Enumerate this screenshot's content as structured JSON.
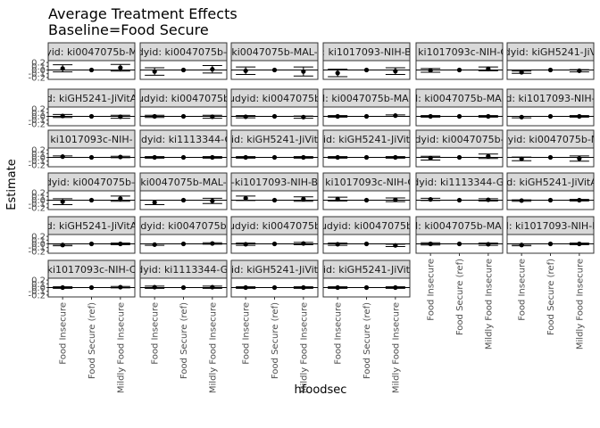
{
  "chart_data": {
    "type": "scatter",
    "title": "Average Treatment Effects",
    "subtitle": "Baseline=Food Secure",
    "xlabel": "hfoodsec",
    "ylabel": "Estimate",
    "categories": [
      "Food Insecure",
      "Food Secure (ref)",
      "Mildly Food Insecure"
    ],
    "yticks": [
      "0.2",
      "0.1",
      "0.0",
      "-0.1",
      "-0.2"
    ],
    "ylim": [
      -0.25,
      0.25
    ],
    "grid": false,
    "facet_rows": 6,
    "facet_cols": 6,
    "panels": [
      {
        "label": "yid: ki0047075b-M",
        "estimate": [
          0.04,
          0.0,
          0.06
        ],
        "lower": [
          -0.05,
          0.0,
          -0.03
        ],
        "upper": [
          0.14,
          0.0,
          0.15
        ]
      },
      {
        "label": "dyid: ki0047075b-I",
        "estimate": [
          -0.04,
          0.0,
          0.02
        ],
        "lower": [
          -0.14,
          0.0,
          -0.08
        ],
        "upper": [
          0.06,
          0.0,
          0.12
        ]
      },
      {
        "label": "ki0047075b-MAL-",
        "estimate": [
          -0.02,
          0.0,
          -0.04
        ],
        "lower": [
          -0.12,
          0.0,
          -0.16
        ],
        "upper": [
          0.08,
          0.0,
          0.08
        ]
      },
      {
        "label": ": ki1017093-NIH-B",
        "estimate": [
          -0.08,
          0.0,
          -0.03
        ],
        "lower": [
          -0.18,
          0.0,
          -0.12
        ],
        "upper": [
          0.02,
          0.0,
          0.06
        ]
      },
      {
        "label": ": ki1017093c-NIH-C",
        "estimate": [
          -0.01,
          0.0,
          0.03
        ],
        "lower": [
          -0.06,
          0.0,
          -0.02
        ],
        "upper": [
          0.04,
          0.0,
          0.08
        ]
      },
      {
        "label": "udyid: kiGH5241-JiVit",
        "estimate": [
          -0.06,
          0.0,
          -0.02
        ],
        "lower": [
          -0.09,
          0.0,
          -0.05
        ],
        "upper": [
          -0.03,
          0.0,
          0.01
        ]
      },
      {
        "label": "d: kiGH5241-JiVitA",
        "estimate": [
          0.01,
          0.0,
          -0.01
        ],
        "lower": [
          -0.03,
          0.0,
          -0.05
        ],
        "upper": [
          0.05,
          0.0,
          0.03
        ]
      },
      {
        "label": "udyid: ki0047075b",
        "estimate": [
          0.0,
          0.0,
          -0.01
        ],
        "lower": [
          -0.03,
          0.0,
          -0.05
        ],
        "upper": [
          0.03,
          0.0,
          0.03
        ]
      },
      {
        "label": "udyid: ki0047075b",
        "estimate": [
          -0.01,
          0.0,
          -0.02
        ],
        "lower": [
          -0.04,
          0.0,
          -0.05
        ],
        "upper": [
          0.02,
          0.0,
          0.01
        ]
      },
      {
        "label": "d: ki0047075b-MAL",
        "estimate": [
          0.0,
          0.0,
          0.02
        ],
        "lower": [
          -0.02,
          0.0,
          0.0
        ],
        "upper": [
          0.02,
          0.0,
          0.04
        ]
      },
      {
        "label": "d: ki0047075b-MAL",
        "estimate": [
          0.0,
          0.0,
          0.0
        ],
        "lower": [
          -0.02,
          0.0,
          -0.02
        ],
        "upper": [
          0.02,
          0.0,
          0.02
        ]
      },
      {
        "label": "d: ki1017093-NIH-",
        "estimate": [
          -0.02,
          0.0,
          0.0
        ],
        "lower": [
          -0.04,
          0.0,
          -0.02
        ],
        "upper": [
          0.0,
          0.0,
          0.02
        ]
      },
      {
        "label": "ki1017093c-NIH-",
        "estimate": [
          0.02,
          0.0,
          0.01
        ],
        "lower": [
          0.0,
          0.0,
          -0.01
        ],
        "upper": [
          0.04,
          0.0,
          0.03
        ]
      },
      {
        "label": "udyid: ki1113344-G",
        "estimate": [
          0.0,
          0.0,
          0.0
        ],
        "lower": [
          -0.02,
          0.0,
          -0.02
        ],
        "upper": [
          0.02,
          0.0,
          0.02
        ]
      },
      {
        "label": "id: kiGH5241-JiVit",
        "estimate": [
          0.0,
          0.0,
          0.0
        ],
        "lower": [
          -0.02,
          0.0,
          -0.02
        ],
        "upper": [
          0.02,
          0.0,
          0.02
        ]
      },
      {
        "label": "id: kiGH5241-JiVit",
        "estimate": [
          0.0,
          0.0,
          0.0
        ],
        "lower": [
          -0.02,
          0.0,
          -0.02
        ],
        "upper": [
          0.02,
          0.0,
          0.02
        ]
      },
      {
        "label": "dyid: ki0047075b-",
        "estimate": [
          -0.02,
          0.0,
          0.03
        ],
        "lower": [
          -0.07,
          0.0,
          -0.03
        ],
        "upper": [
          0.03,
          0.0,
          0.09
        ]
      },
      {
        "label": "dyid: ki0047075b-M",
        "estimate": [
          -0.04,
          0.0,
          -0.03
        ],
        "lower": [
          -0.09,
          0.0,
          -0.1
        ],
        "upper": [
          0.01,
          0.0,
          0.04
        ]
      },
      {
        "label": "dyid: ki0047075b-I",
        "estimate": [
          -0.04,
          0.0,
          0.04
        ],
        "lower": [
          -0.12,
          0.0,
          -0.03
        ],
        "upper": [
          0.04,
          0.0,
          0.11
        ]
      },
      {
        "label": "ki0047075b-MAL-",
        "estimate": [
          -0.06,
          0.0,
          -0.02
        ],
        "lower": [
          -0.12,
          0.0,
          -0.09
        ],
        "upper": [
          0.0,
          0.0,
          0.05
        ]
      },
      {
        "label": "-ki1017093-NIH-B",
        "estimate": [
          0.05,
          0.0,
          0.03
        ],
        "lower": [
          -0.01,
          0.0,
          -0.03
        ],
        "upper": [
          0.11,
          0.0,
          0.09
        ]
      },
      {
        "label": ": ki1017093c-NIH-C",
        "estimate": [
          0.03,
          0.0,
          0.01
        ],
        "lower": [
          -0.02,
          0.0,
          -0.04
        ],
        "upper": [
          0.08,
          0.0,
          0.06
        ]
      },
      {
        "label": "udyid: ki1113344-GM",
        "estimate": [
          0.02,
          0.0,
          0.01
        ],
        "lower": [
          -0.01,
          0.0,
          -0.02
        ],
        "upper": [
          0.05,
          0.0,
          0.04
        ]
      },
      {
        "label": "id: kiGH5241-JiVitA",
        "estimate": [
          -0.01,
          0.0,
          0.0
        ],
        "lower": [
          -0.03,
          0.0,
          -0.02
        ],
        "upper": [
          0.01,
          0.0,
          0.02
        ]
      },
      {
        "label": "d: kiGH5241-JiVitA",
        "estimate": [
          -0.03,
          0.0,
          0.0
        ],
        "lower": [
          -0.05,
          0.0,
          -0.02
        ],
        "upper": [
          -0.01,
          0.0,
          0.02
        ]
      },
      {
        "label": "dyid: ki0047075b",
        "estimate": [
          -0.02,
          0.0,
          0.01
        ],
        "lower": [
          -0.04,
          0.0,
          -0.01
        ],
        "upper": [
          0.0,
          0.0,
          0.03
        ]
      },
      {
        "label": "udyid: ki0047075b",
        "estimate": [
          -0.01,
          0.0,
          0.01
        ],
        "lower": [
          -0.04,
          0.0,
          -0.02
        ],
        "upper": [
          0.02,
          0.0,
          0.04
        ]
      },
      {
        "label": "udyid: ki0047075b",
        "estimate": [
          -0.01,
          0.0,
          -0.04
        ],
        "lower": [
          -0.04,
          0.0,
          -0.07
        ],
        "upper": [
          0.02,
          0.0,
          -0.01
        ]
      },
      {
        "label": "d: ki0047075b-MAL",
        "estimate": [
          0.0,
          0.0,
          -0.01
        ],
        "lower": [
          -0.03,
          0.0,
          -0.04
        ],
        "upper": [
          0.03,
          0.0,
          0.02
        ]
      },
      {
        "label": "d: ki1017093-NIH-E",
        "estimate": [
          -0.03,
          0.0,
          0.0
        ],
        "lower": [
          -0.05,
          0.0,
          -0.02
        ],
        "upper": [
          -0.01,
          0.0,
          0.02
        ]
      },
      {
        "label": "ki1017093c-NIH-C",
        "estimate": [
          0.0,
          0.0,
          0.01
        ],
        "lower": [
          -0.02,
          0.0,
          -0.01
        ],
        "upper": [
          0.02,
          0.0,
          0.03
        ]
      },
      {
        "label": "udyid: ki1113344-GM",
        "estimate": [
          0.01,
          0.0,
          0.01
        ],
        "lower": [
          -0.02,
          0.0,
          -0.02
        ],
        "upper": [
          0.04,
          0.0,
          0.04
        ]
      },
      {
        "label": "id: kiGH5241-JiVit",
        "estimate": [
          0.0,
          0.0,
          0.0
        ],
        "lower": [
          -0.02,
          0.0,
          -0.02
        ],
        "upper": [
          0.02,
          0.0,
          0.02
        ]
      },
      {
        "label": "id: kiGH5241-JiVit",
        "estimate": [
          0.0,
          0.0,
          0.0
        ],
        "lower": [
          -0.02,
          0.0,
          -0.02
        ],
        "upper": [
          0.02,
          0.0,
          0.02
        ]
      }
    ]
  }
}
